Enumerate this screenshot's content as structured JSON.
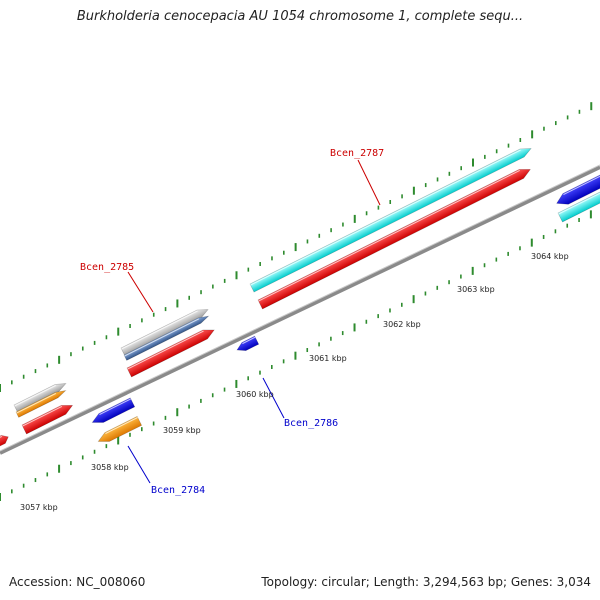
{
  "title": "Burkholderia cenocepacia AU 1054 chromosome 1, complete sequ...",
  "accession_text": "Accession: NC_008060",
  "topology_text": "Topology: circular; Length: 3,294,563 bp; Genes: 3,034",
  "colors": {
    "backbone": "#8a8a8a",
    "tick": "#2e8b2e",
    "red": "#ee1111",
    "cyan": "#11eeee",
    "blue": "#1111dd",
    "orange": "#ff9900",
    "silver": "#bbbbbb",
    "steelblue": "#5588bb",
    "label_red": "#cc0000",
    "label_blue": "#0000cc"
  },
  "ticks": [
    {
      "label": "3057 kbp"
    },
    {
      "label": "3058 kbp"
    },
    {
      "label": "3059 kbp"
    },
    {
      "label": "3060 kbp"
    },
    {
      "label": "3061 kbp"
    },
    {
      "label": "3062 kbp"
    },
    {
      "label": "3063 kbp"
    },
    {
      "label": "3064 kbp"
    }
  ],
  "genes": [
    {
      "label": "Bcen_2784",
      "strand": "reverse",
      "color": "orange"
    },
    {
      "label": "Bcen_2785",
      "strand": "forward",
      "color": "steelblue"
    },
    {
      "label": "Bcen_2786",
      "strand": "reverse",
      "color": "blue"
    },
    {
      "label": "Bcen_2787",
      "strand": "forward",
      "color": "cyan"
    }
  ]
}
